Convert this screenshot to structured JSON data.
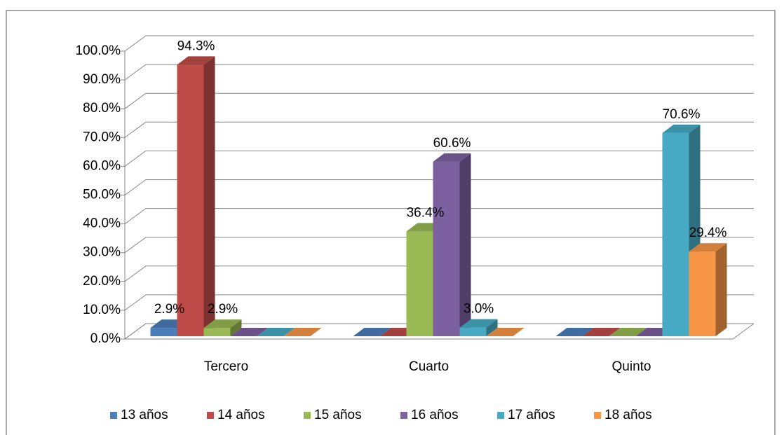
{
  "chart_data": {
    "type": "bar3d",
    "categories": [
      "Tercero",
      "Cuarto",
      "Quinto"
    ],
    "series": [
      {
        "name": "13 años",
        "color": "#4a7ebb",
        "values": [
          2.9,
          0,
          0
        ],
        "value_labels": [
          "2.9%",
          null,
          null
        ]
      },
      {
        "name": "14 años",
        "color": "#be4b48",
        "values": [
          94.3,
          0,
          0
        ],
        "value_labels": [
          "94.3%",
          null,
          null
        ]
      },
      {
        "name": "15 años",
        "color": "#98b954",
        "values": [
          2.9,
          36.4,
          0
        ],
        "value_labels": [
          "2.9%",
          "36.4%",
          null
        ]
      },
      {
        "name": "16 años",
        "color": "#7d60a0",
        "values": [
          0,
          60.6,
          0
        ],
        "value_labels": [
          null,
          "60.6%",
          null
        ]
      },
      {
        "name": "17 años",
        "color": "#46aac5",
        "values": [
          0,
          3.0,
          70.6
        ],
        "value_labels": [
          null,
          "3.0%",
          "70.6%"
        ]
      },
      {
        "name": "18 años",
        "color": "#f79646",
        "values": [
          0,
          0,
          29.4
        ],
        "value_labels": [
          null,
          null,
          "29.4%"
        ]
      }
    ],
    "ylim": [
      0,
      100
    ],
    "yticks": [
      {
        "value": 0,
        "label": "0.0%"
      },
      {
        "value": 10,
        "label": "10.0%"
      },
      {
        "value": 20,
        "label": "20.0%"
      },
      {
        "value": 30,
        "label": "30.0%"
      },
      {
        "value": 40,
        "label": "40.0%"
      },
      {
        "value": 50,
        "label": "50.0%"
      },
      {
        "value": 60,
        "label": "60.0%"
      },
      {
        "value": 70,
        "label": "70.0%"
      },
      {
        "value": 80,
        "label": "80.0%"
      },
      {
        "value": 90,
        "label": "90.0%"
      },
      {
        "value": 100,
        "label": "100.0%"
      }
    ],
    "grid": true,
    "legend": "bottom"
  }
}
